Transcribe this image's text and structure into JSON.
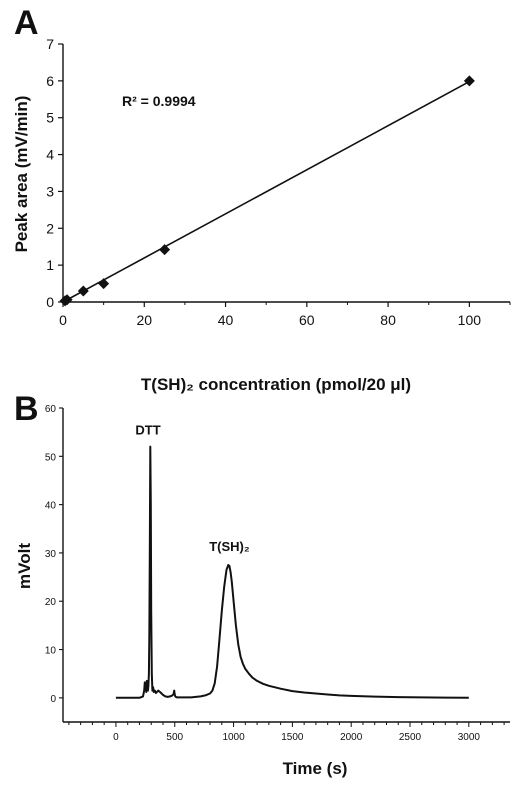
{
  "chart_data": [
    {
      "panel": "A",
      "type": "scatter",
      "x": [
        0.5,
        1,
        5,
        10,
        25,
        100
      ],
      "y": [
        0.03,
        0.06,
        0.3,
        0.5,
        1.42,
        6.0
      ],
      "trendline": {
        "x": [
          0,
          100
        ],
        "y": [
          0.0,
          5.98
        ]
      },
      "annotation": "R² = 0.9994",
      "xlabel": "T(SH)₂ concentration (pmol/20 μl)",
      "ylabel": "Peak area (mV/min)",
      "xlim": [
        0,
        110
      ],
      "ylim": [
        0,
        7
      ],
      "xticks": [
        0,
        20,
        40,
        60,
        80,
        100
      ],
      "yticks": [
        0,
        1,
        2,
        3,
        4,
        5,
        6,
        7
      ],
      "marker": "diamond",
      "color": "#111111",
      "grid": false
    },
    {
      "panel": "B",
      "type": "line",
      "xlabel": "Time (s)",
      "ylabel": "mVolt",
      "xlim": [
        -450,
        3350
      ],
      "ylim": [
        -5,
        60
      ],
      "xticks": [
        0,
        500,
        1000,
        1500,
        2000,
        2500,
        3000
      ],
      "yticks": [
        0,
        10,
        20,
        30,
        40,
        50,
        60
      ],
      "peaks": [
        {
          "label": "DTT",
          "x": 290,
          "y": 52
        },
        {
          "label": "T(SH)₂",
          "x": 965,
          "y": 27.5
        }
      ],
      "x": [
        0,
        200,
        230,
        240,
        245,
        252,
        258,
        262,
        268,
        272,
        276,
        280,
        284,
        288,
        292,
        296,
        300,
        305,
        310,
        316,
        322,
        330,
        340,
        360,
        380,
        400,
        420,
        440,
        460,
        480,
        490,
        495,
        500,
        505,
        510,
        520,
        560,
        600,
        640,
        680,
        720,
        760,
        800,
        820,
        840,
        860,
        880,
        900,
        920,
        940,
        955,
        965,
        975,
        985,
        1000,
        1020,
        1040,
        1060,
        1080,
        1100,
        1130,
        1160,
        1200,
        1250,
        1300,
        1400,
        1500,
        1600,
        1700,
        1800,
        1900,
        2000,
        2200,
        2400,
        2600,
        2800,
        3000
      ],
      "y": [
        0,
        0,
        0.3,
        1.5,
        3.2,
        3.0,
        1.2,
        3.5,
        2.0,
        1.5,
        2.5,
        5,
        12,
        30,
        52,
        40,
        18,
        5,
        1.5,
        2.2,
        1.2,
        1.5,
        1.0,
        1.5,
        1.1,
        0.6,
        0.3,
        0.2,
        0.3,
        0.5,
        0.8,
        1.5,
        0.6,
        0.3,
        0.2,
        0.1,
        0.1,
        0.1,
        0.1,
        0.2,
        0.3,
        0.5,
        0.9,
        1.5,
        3,
        6.5,
        12,
        18,
        23,
        26.5,
        27.5,
        27.3,
        26,
        24,
        20,
        15,
        11,
        8.5,
        7,
        6,
        5,
        4.2,
        3.5,
        2.9,
        2.5,
        1.9,
        1.4,
        1.1,
        0.9,
        0.7,
        0.5,
        0.4,
        0.25,
        0.15,
        0.1,
        0.05,
        0.0
      ],
      "color": "#111111",
      "grid": false
    }
  ]
}
